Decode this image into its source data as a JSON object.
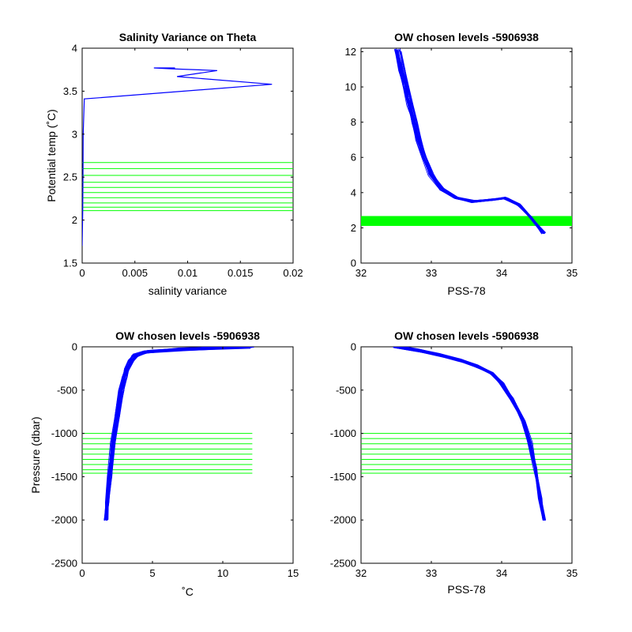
{
  "colors": {
    "profile": "#0000ff",
    "levels": "#00ff00",
    "axes": "#000000"
  },
  "chart_data": [
    {
      "type": "line",
      "title": "Salinity Variance on Theta",
      "xlabel": "salinity variance",
      "ylabel": "Potential temp (˚C)",
      "xlim": [
        0,
        0.02
      ],
      "ylim": [
        1.5,
        4
      ],
      "xticks": [
        0,
        0.005,
        0.01,
        0.015,
        0.02
      ],
      "xtick_labels": [
        "0",
        "0.005",
        "0.01",
        "0.015",
        "0.02"
      ],
      "yticks": [
        1.5,
        2,
        2.5,
        3,
        3.5,
        4
      ],
      "ytick_labels": [
        "1.5",
        "2",
        "2.5",
        "3",
        "3.5",
        "4"
      ],
      "grid": false,
      "series": [
        {
          "role": "profile",
          "x": [
            0,
            5e-05,
            8e-05,
            0.0001,
            0.0002,
            0.018,
            0.009,
            0.0128,
            0.0085,
            0.0068,
            0.0088
          ],
          "y": [
            1.7,
            2.1,
            2.6,
            3.0,
            3.41,
            3.58,
            3.67,
            3.74,
            3.76,
            3.77,
            3.77
          ]
        }
      ],
      "hlines": {
        "role": "levels",
        "values": [
          2.11,
          2.15,
          2.2,
          2.26,
          2.32,
          2.38,
          2.44,
          2.52,
          2.6,
          2.67
        ],
        "x_range": [
          0,
          0.02
        ]
      }
    },
    {
      "type": "line",
      "title": "OW chosen levels -5906938",
      "xlabel": "PSS-78",
      "ylabel": "",
      "xlim": [
        32,
        35
      ],
      "ylim": [
        0,
        12.2
      ],
      "xticks": [
        32,
        33,
        34,
        35
      ],
      "xtick_labels": [
        "32",
        "33",
        "34",
        "35"
      ],
      "yticks": [
        0,
        2,
        4,
        6,
        8,
        10,
        12
      ],
      "ytick_labels": [
        "0",
        "2",
        "4",
        "6",
        "8",
        "10",
        "12"
      ],
      "grid": false,
      "profiles": {
        "role": "profile",
        "count": 30,
        "x_mean": [
          32.52,
          32.58,
          32.64,
          32.7,
          32.76,
          32.82,
          32.9,
          33.0,
          33.15,
          33.35,
          33.6,
          33.85,
          34.05,
          34.25,
          34.42,
          34.6
        ],
        "y_mean": [
          12.1,
          11.0,
          10.0,
          9.0,
          8.0,
          7.0,
          6.0,
          5.0,
          4.2,
          3.7,
          3.5,
          3.6,
          3.7,
          3.3,
          2.6,
          1.7
        ]
      },
      "hband": {
        "role": "levels",
        "values": [
          2.11,
          2.67
        ],
        "x_range": [
          32,
          35
        ]
      }
    },
    {
      "type": "line",
      "title": "OW chosen levels -5906938",
      "xlabel": "˚C",
      "ylabel": "Pressure (dbar)",
      "xlim": [
        0,
        15
      ],
      "ylim": [
        -2500,
        0
      ],
      "xticks": [
        0,
        5,
        10,
        15
      ],
      "xtick_labels": [
        "0",
        "5",
        "10",
        "15"
      ],
      "yticks": [
        -2500,
        -2000,
        -1500,
        -1000,
        -500,
        0
      ],
      "ytick_labels": [
        "-2500",
        "-2000",
        "-1500",
        "-1000",
        "-500",
        "0"
      ],
      "grid": false,
      "profiles": {
        "role": "profile",
        "count": 30,
        "x_mean": [
          12.0,
          7.0,
          4.5,
          3.8,
          3.5,
          3.2,
          3.0,
          2.8,
          2.5,
          2.2,
          1.95,
          1.8,
          1.7
        ],
        "y_mean": [
          0,
          -30,
          -60,
          -100,
          -150,
          -250,
          -350,
          -500,
          -800,
          -1100,
          -1500,
          -1800,
          -2000
        ]
      },
      "hlines": {
        "role": "levels",
        "values": [
          -1000,
          -1060,
          -1120,
          -1180,
          -1240,
          -1300,
          -1360,
          -1420,
          -1460
        ],
        "x_range": [
          0,
          12.1
        ]
      }
    },
    {
      "type": "line",
      "title": "OW chosen levels -5906938",
      "xlabel": "PSS-78",
      "ylabel": "",
      "xlim": [
        32,
        35
      ],
      "ylim": [
        -2500,
        0
      ],
      "xticks": [
        32,
        33,
        34,
        35
      ],
      "xtick_labels": [
        "32",
        "33",
        "34",
        "35"
      ],
      "yticks": [
        -2500,
        -2000,
        -1500,
        -1000,
        -500,
        0
      ],
      "ytick_labels": [
        "-2500",
        "-2000",
        "-1500",
        "-1000",
        "-500",
        "0"
      ],
      "grid": false,
      "profiles": {
        "role": "profile",
        "count": 30,
        "x_mean": [
          32.5,
          32.8,
          33.1,
          33.4,
          33.65,
          33.85,
          34.0,
          34.15,
          34.3,
          34.4,
          34.48,
          34.55,
          34.6
        ],
        "y_mean": [
          0,
          -40,
          -90,
          -150,
          -220,
          -300,
          -420,
          -600,
          -850,
          -1100,
          -1400,
          -1750,
          -2000
        ]
      },
      "hlines": {
        "role": "levels",
        "values": [
          -1000,
          -1060,
          -1120,
          -1180,
          -1240,
          -1300,
          -1360,
          -1420,
          -1460
        ],
        "x_range": [
          32,
          35
        ]
      }
    }
  ]
}
